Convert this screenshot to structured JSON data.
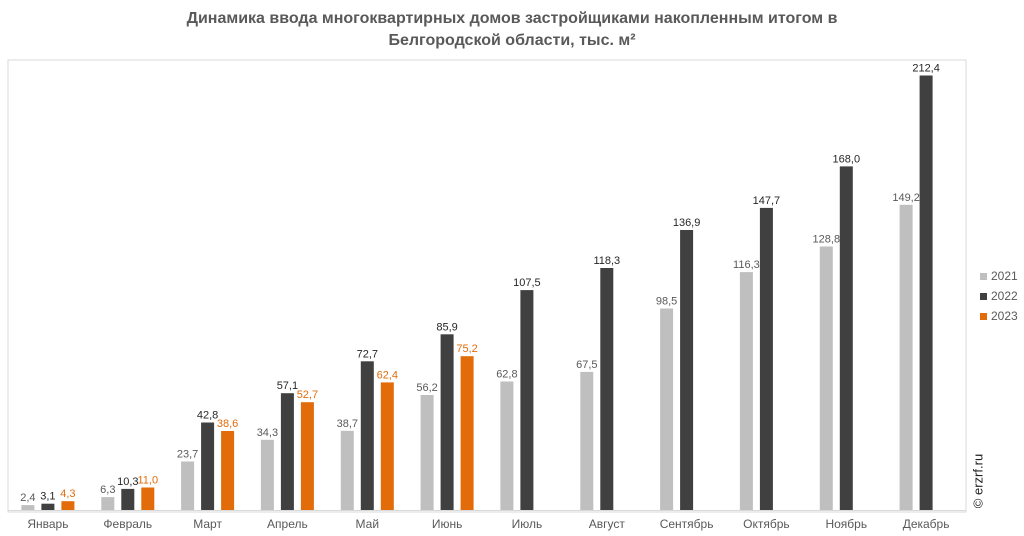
{
  "chart_data": {
    "type": "bar",
    "title_lines": [
      "Динамика ввода многоквартирных домов застройщиками накопленным итогом в",
      "Белгородской области, тыс. м²"
    ],
    "categories": [
      "Январь",
      "Февраль",
      "Март",
      "Апрель",
      "Май",
      "Июнь",
      "Июль",
      "Август",
      "Сентябрь",
      "Октябрь",
      "Ноябрь",
      "Декабрь"
    ],
    "series": [
      {
        "name": "2021",
        "color": "#bfbfbf",
        "label_color": "#595959",
        "values": [
          2.4,
          6.3,
          23.7,
          34.3,
          38.7,
          56.2,
          62.8,
          67.5,
          98.5,
          116.3,
          128.8,
          149.2
        ],
        "labels": [
          "2,4",
          "6,3",
          "23,7",
          "34,3",
          "38,7",
          "56,2",
          "62,8",
          "67,5",
          "98,5",
          "116,3",
          "128,8",
          "149,2"
        ]
      },
      {
        "name": "2022",
        "color": "#404040",
        "label_color": "#262626",
        "values": [
          3.1,
          10.3,
          42.8,
          57.1,
          72.7,
          85.9,
          107.5,
          118.3,
          136.9,
          147.7,
          168.0,
          212.4
        ],
        "labels": [
          "3,1",
          "10,3",
          "42,8",
          "57,1",
          "72,7",
          "85,9",
          "107,5",
          "118,3",
          "136,9",
          "147,7",
          "168,0",
          "212,4"
        ]
      },
      {
        "name": "2023",
        "color": "#e36c0a",
        "label_color": "#e36c0a",
        "values": [
          4.3,
          11.0,
          38.6,
          52.7,
          62.4,
          75.2,
          null,
          null,
          null,
          null,
          null,
          null
        ],
        "labels": [
          "4,3",
          "11,0",
          "38,6",
          "52,7",
          "62,4",
          "75,2",
          null,
          null,
          null,
          null,
          null,
          null
        ]
      }
    ],
    "ylim": [
      0,
      220
    ],
    "grid": false,
    "legend_position": "right"
  },
  "watermark": "© erzrf.ru"
}
